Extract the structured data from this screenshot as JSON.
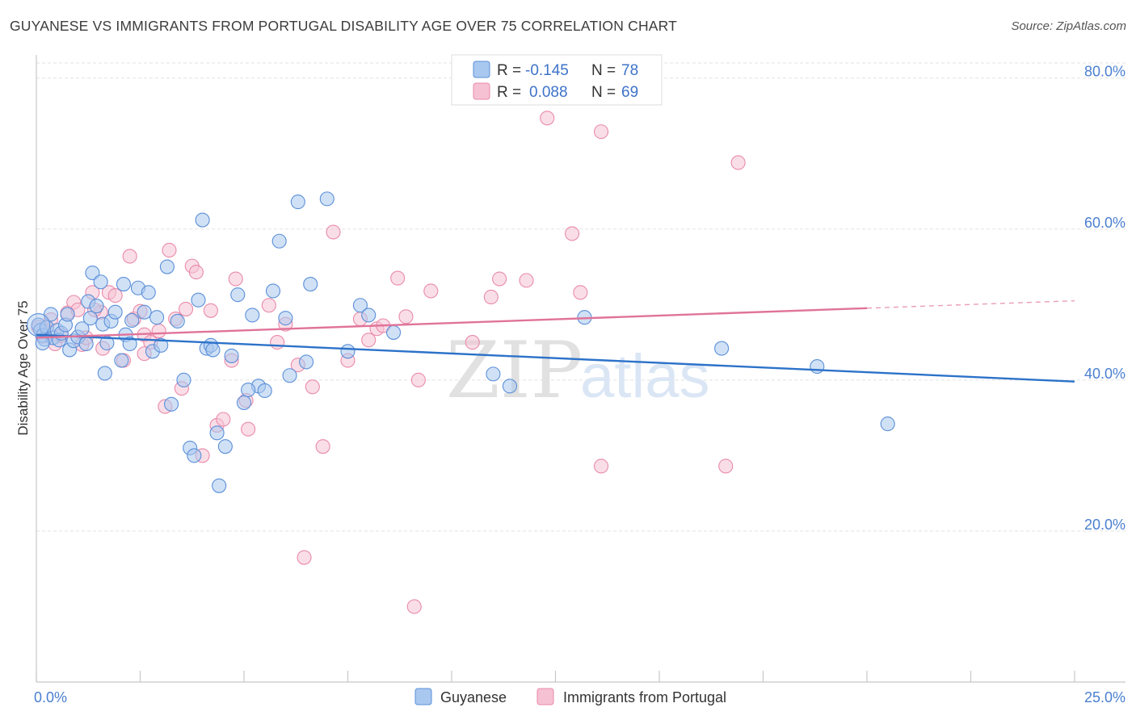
{
  "header": {
    "title": "GUYANESE VS IMMIGRANTS FROM PORTUGAL DISABILITY AGE OVER 75 CORRELATION CHART",
    "source": "Source: ZipAtlas.com"
  },
  "watermark": {
    "zip": "ZIP",
    "atlas": "atlas"
  },
  "legend": {
    "rows": [
      {
        "r_label": "R =",
        "r_value": "-0.145",
        "n_label": "N =",
        "n_value": "78"
      },
      {
        "r_label": "R =",
        "r_value": "0.088",
        "n_label": "N =",
        "n_value": "69"
      }
    ]
  },
  "bottom_legend": [
    "Guyanese",
    "Immigrants from Portugal"
  ],
  "colors": {
    "blue_fill": "#a9c8ef",
    "blue_stroke": "#5b8fd8",
    "blue_line": "#2c72c9",
    "pink_fill": "#f6c2d3",
    "pink_stroke": "#e98aaa",
    "pink_line": "#e0739a",
    "grid": "#e2e2e2",
    "tick_text": "#4a7fd0"
  },
  "chart_data": {
    "type": "scatter",
    "title": "GUYANESE VS IMMIGRANTS FROM PORTUGAL DISABILITY AGE OVER 75 CORRELATION CHART",
    "xlabel": "",
    "ylabel": "Disability Age Over 75",
    "xlim": [
      0,
      25
    ],
    "ylim": [
      0,
      82
    ],
    "x_tick_labels": [
      "0.0%",
      "25.0%"
    ],
    "y_ticks": [
      20,
      40,
      60,
      80
    ],
    "y_tick_labels": [
      "20.0%",
      "40.0%",
      "60.0%",
      "80.0%"
    ],
    "series": [
      {
        "name": "Guyanese",
        "r": -0.145,
        "n": 78,
        "trend": {
          "x0": 0,
          "y0": 46.0,
          "x1": 25,
          "y1": 39.8,
          "dashed_from": null
        },
        "points": [
          [
            0.05,
            47.3
          ],
          [
            0.1,
            46.6
          ],
          [
            0.15,
            45.9
          ],
          [
            0.2,
            45.4
          ],
          [
            0.25,
            47.0
          ],
          [
            0.35,
            48.7
          ],
          [
            0.4,
            45.6
          ],
          [
            0.5,
            46.6
          ],
          [
            0.55,
            45.3
          ],
          [
            0.6,
            46.2
          ],
          [
            0.7,
            47.3
          ],
          [
            0.75,
            48.7
          ],
          [
            0.8,
            44.0
          ],
          [
            0.9,
            45.2
          ],
          [
            1.0,
            45.7
          ],
          [
            1.1,
            46.8
          ],
          [
            1.2,
            44.8
          ],
          [
            1.25,
            50.4
          ],
          [
            1.3,
            48.2
          ],
          [
            1.35,
            54.2
          ],
          [
            1.45,
            49.8
          ],
          [
            1.55,
            53.0
          ],
          [
            1.6,
            47.4
          ],
          [
            1.7,
            44.9
          ],
          [
            1.8,
            47.8
          ],
          [
            1.9,
            49.0
          ],
          [
            2.1,
            52.7
          ],
          [
            2.15,
            46.0
          ],
          [
            2.25,
            44.8
          ],
          [
            2.3,
            47.9
          ],
          [
            2.45,
            52.2
          ],
          [
            2.6,
            49.0
          ],
          [
            2.7,
            51.6
          ],
          [
            2.8,
            43.8
          ],
          [
            2.9,
            48.3
          ],
          [
            3.0,
            44.6
          ],
          [
            3.15,
            55.0
          ],
          [
            3.25,
            36.8
          ],
          [
            3.4,
            47.8
          ],
          [
            3.55,
            40.0
          ],
          [
            3.7,
            31.0
          ],
          [
            3.8,
            30.0
          ],
          [
            3.9,
            50.6
          ],
          [
            4.0,
            61.2
          ],
          [
            4.1,
            44.2
          ],
          [
            4.2,
            44.6
          ],
          [
            4.35,
            33.0
          ],
          [
            4.4,
            26.0
          ],
          [
            4.55,
            31.2
          ],
          [
            4.7,
            43.2
          ],
          [
            4.85,
            51.3
          ],
          [
            5.0,
            37.0
          ],
          [
            5.2,
            48.6
          ],
          [
            5.35,
            39.2
          ],
          [
            5.5,
            38.6
          ],
          [
            5.7,
            51.8
          ],
          [
            5.85,
            58.4
          ],
          [
            6.0,
            48.2
          ],
          [
            6.1,
            40.6
          ],
          [
            6.3,
            63.6
          ],
          [
            6.5,
            42.4
          ],
          [
            6.6,
            52.7
          ],
          [
            7.0,
            64.0
          ],
          [
            7.5,
            43.8
          ],
          [
            7.8,
            49.9
          ],
          [
            8.0,
            48.6
          ],
          [
            8.6,
            46.3
          ],
          [
            11.0,
            40.8
          ],
          [
            11.4,
            39.2
          ],
          [
            13.2,
            48.3
          ],
          [
            16.5,
            44.2
          ],
          [
            18.8,
            41.8
          ],
          [
            20.5,
            34.2
          ],
          [
            0.15,
            44.9
          ],
          [
            1.65,
            40.9
          ],
          [
            2.05,
            42.6
          ],
          [
            4.25,
            44.0
          ],
          [
            5.1,
            38.7
          ]
        ]
      },
      {
        "name": "Immigrants from Portugal",
        "r": 0.088,
        "n": 69,
        "trend": {
          "x0": 0,
          "y0": 45.6,
          "x1": 25,
          "y1": 50.5,
          "dashed_from": 20
        },
        "points": [
          [
            0.05,
            47.0
          ],
          [
            0.15,
            45.8
          ],
          [
            0.25,
            46.9
          ],
          [
            0.35,
            48.0
          ],
          [
            0.45,
            44.8
          ],
          [
            0.6,
            45.9
          ],
          [
            0.75,
            48.9
          ],
          [
            0.9,
            50.3
          ],
          [
            1.0,
            49.3
          ],
          [
            1.1,
            44.7
          ],
          [
            1.2,
            45.6
          ],
          [
            1.35,
            51.6
          ],
          [
            1.55,
            49.0
          ],
          [
            1.6,
            44.2
          ],
          [
            1.75,
            51.6
          ],
          [
            1.9,
            51.2
          ],
          [
            2.1,
            42.6
          ],
          [
            2.25,
            56.4
          ],
          [
            2.35,
            48.1
          ],
          [
            2.5,
            49.1
          ],
          [
            2.6,
            46.0
          ],
          [
            2.75,
            45.0
          ],
          [
            2.95,
            46.5
          ],
          [
            3.1,
            36.5
          ],
          [
            3.2,
            57.2
          ],
          [
            3.35,
            48.1
          ],
          [
            3.5,
            38.9
          ],
          [
            3.6,
            49.4
          ],
          [
            3.75,
            55.1
          ],
          [
            3.85,
            54.3
          ],
          [
            4.0,
            30.0
          ],
          [
            4.2,
            49.2
          ],
          [
            4.35,
            34.0
          ],
          [
            4.5,
            34.8
          ],
          [
            4.7,
            42.6
          ],
          [
            4.8,
            53.4
          ],
          [
            5.05,
            37.3
          ],
          [
            5.1,
            33.5
          ],
          [
            5.6,
            49.9
          ],
          [
            5.8,
            45.0
          ],
          [
            6.0,
            47.4
          ],
          [
            6.3,
            42.0
          ],
          [
            6.45,
            16.5
          ],
          [
            6.65,
            39.1
          ],
          [
            6.9,
            31.2
          ],
          [
            7.15,
            59.6
          ],
          [
            7.5,
            42.6
          ],
          [
            7.8,
            48.1
          ],
          [
            8.0,
            45.3
          ],
          [
            8.2,
            46.8
          ],
          [
            8.35,
            47.2
          ],
          [
            8.7,
            53.5
          ],
          [
            8.9,
            48.4
          ],
          [
            9.1,
            10.0
          ],
          [
            9.2,
            40.0
          ],
          [
            9.5,
            51.8
          ],
          [
            10.5,
            45.0
          ],
          [
            10.95,
            51.0
          ],
          [
            11.15,
            53.4
          ],
          [
            11.8,
            53.2
          ],
          [
            12.3,
            74.7
          ],
          [
            12.9,
            59.4
          ],
          [
            13.1,
            51.6
          ],
          [
            13.6,
            72.9
          ],
          [
            13.6,
            28.6
          ],
          [
            16.6,
            28.6
          ],
          [
            16.9,
            68.8
          ],
          [
            1.4,
            49.3
          ],
          [
            2.6,
            43.5
          ]
        ]
      }
    ]
  }
}
